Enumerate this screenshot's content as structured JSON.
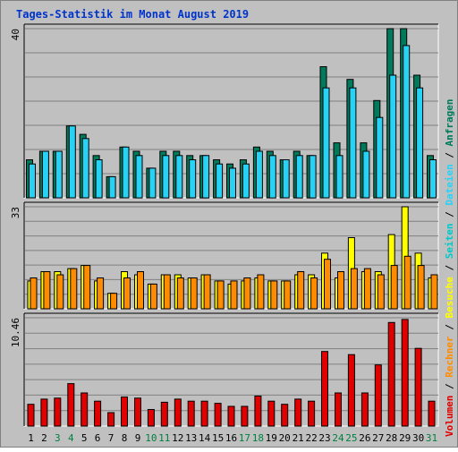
{
  "chart_data": {
    "type": "bar",
    "title": "Tages-Statistik im Monat August 2019",
    "categories": [
      "1",
      "2",
      "3",
      "4",
      "5",
      "6",
      "7",
      "8",
      "9",
      "10",
      "11",
      "12",
      "13",
      "14",
      "15",
      "16",
      "17",
      "18",
      "19",
      "20",
      "21",
      "22",
      "23",
      "24",
      "25",
      "26",
      "27",
      "28",
      "29",
      "30",
      "31"
    ],
    "weekend_days": [
      "3",
      "4",
      "10",
      "11",
      "17",
      "18",
      "24",
      "25",
      "31"
    ],
    "colors": {
      "anfragen": "#007a5a",
      "dateien": "#28d2f5",
      "seiten": "#00c8c8",
      "besuche": "#ffff00",
      "rechner": "#ff8c00",
      "volumen": "#e00000",
      "title": "#0033cc",
      "weekend": "#008040",
      "weekday": "#000000",
      "plot_bg": "#c0c0c0"
    },
    "legend": {
      "parts": [
        {
          "key": "anfragen",
          "label": "Anfragen"
        },
        {
          "key": "dateien",
          "label": "Dateien"
        },
        {
          "key": "seiten",
          "label": "Seiten"
        },
        {
          "key": "besuche",
          "label": "Besuche"
        },
        {
          "key": "rechner",
          "label": "Rechner"
        },
        {
          "key": "volumen",
          "label": "Volumen"
        }
      ],
      "separator": " / "
    },
    "panels": [
      {
        "id": "anfragen-dateien",
        "ymax": 40,
        "ymax_label": "40",
        "gridlines": 7,
        "series": [
          {
            "name": "Anfragen",
            "color_key": "anfragen",
            "values": [
              9,
              11,
              11,
              17,
              15,
              10,
              5,
              12,
              11,
              7,
              11,
              11,
              10,
              10,
              9,
              8,
              9,
              12,
              11,
              9,
              11,
              10,
              31,
              13,
              28,
              13,
              23,
              40,
              40,
              29,
              10
            ]
          },
          {
            "name": "Dateien",
            "color_key": "dateien",
            "values": [
              8,
              11,
              11,
              17,
              14,
              9,
              5,
              12,
              10,
              7,
              10,
              10,
              9,
              10,
              8,
              7,
              8,
              11,
              10,
              9,
              10,
              10,
              26,
              10,
              26,
              11,
              19,
              29,
              36,
              26,
              9
            ]
          }
        ]
      },
      {
        "id": "seiten-besuche-rechner",
        "ymax": 33,
        "ymax_label": "33",
        "gridlines": 7,
        "series": [
          {
            "name": "Seiten",
            "color_key": "seiten",
            "values": [
              0,
              0,
              0,
              0,
              0,
              0,
              0,
              0,
              0,
              0,
              0,
              0,
              0,
              0,
              0,
              0,
              0,
              0,
              0,
              0,
              0,
              0,
              0,
              0,
              0,
              0,
              0,
              0,
              0,
              0,
              0
            ]
          },
          {
            "name": "Besuche",
            "color_key": "besuche",
            "values": [
              9,
              12,
              12,
              13,
              14,
              9,
              5,
              12,
              11,
              8,
              11,
              11,
              10,
              11,
              9,
              8,
              9,
              10,
              9,
              9,
              11,
              11,
              18,
              10,
              23,
              12,
              12,
              24,
              33,
              18,
              10
            ]
          },
          {
            "name": "Rechner",
            "color_key": "rechner",
            "values": [
              10,
              12,
              11,
              13,
              14,
              10,
              5,
              10,
              12,
              8,
              11,
              10,
              10,
              11,
              9,
              9,
              10,
              11,
              9,
              9,
              12,
              10,
              16,
              12,
              13,
              13,
              11,
              14,
              17,
              14,
              11
            ]
          }
        ]
      },
      {
        "id": "volumen",
        "ymax": 10.46,
        "ymax_label": "10.46",
        "gridlines": 7,
        "series": [
          {
            "name": "Volumen",
            "color_key": "volumen",
            "values": [
              2.1,
              2.6,
              2.7,
              4.1,
              3.2,
              2.4,
              1.3,
              2.8,
              2.7,
              1.6,
              2.3,
              2.6,
              2.4,
              2.4,
              2.2,
              1.9,
              1.9,
              2.9,
              2.4,
              2.1,
              2.6,
              2.4,
              7.2,
              3.2,
              6.9,
              3.2,
              5.9,
              10.0,
              10.3,
              7.5,
              2.4
            ]
          }
        ]
      }
    ]
  }
}
